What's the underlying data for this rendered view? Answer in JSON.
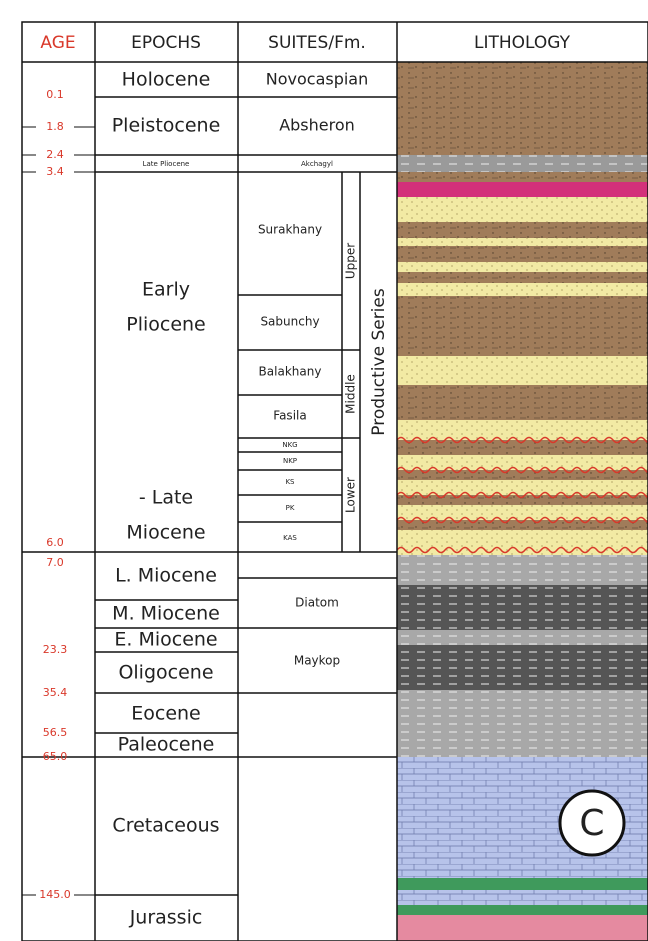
{
  "header": {
    "age": "AGE",
    "epochs": "EPOCHS",
    "suites": "SUITES/Fm.",
    "lithology": "LITHOLOGY"
  },
  "ages": [
    "0.1",
    "1.8",
    "2.4",
    "3.4",
    "6.0",
    "7.0",
    "23.3",
    "35.4",
    "56.5",
    "65.0",
    "145.0"
  ],
  "epochs": [
    "Holocene",
    "Pleistocene",
    "Late Pliocene",
    {
      "lines": [
        "Early",
        "Pliocene",
        "- Late",
        "Miocene"
      ]
    },
    "L. Miocene",
    "M. Miocene",
    "E. Miocene",
    "Oligocene",
    "Eocene",
    "Paleocene",
    "Cretaceous",
    "Jurassic"
  ],
  "suites": [
    "Novocaspian",
    "Absheron",
    "Akchagyl",
    "Surakhany",
    "Sabunchy",
    "Balakhany",
    "Fasila",
    "NKG",
    "NKP",
    "KS",
    "PK",
    "KAS",
    "Diatom",
    "Maykop"
  ],
  "members": [
    "Upper",
    "Middle",
    "Lower"
  ],
  "series": "Productive Series",
  "panel_label": "C"
}
